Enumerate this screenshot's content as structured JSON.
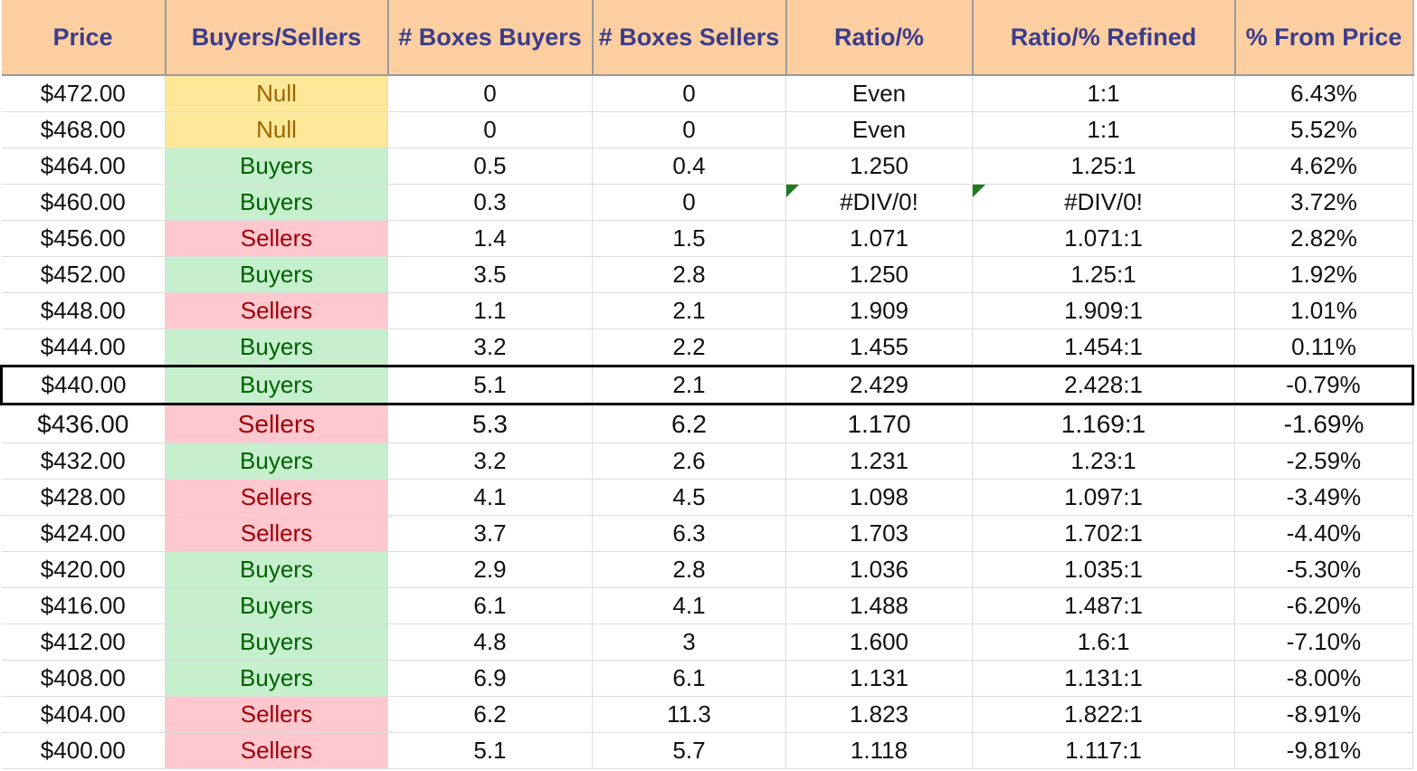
{
  "header": {
    "columns": [
      "Price",
      "Buyers/Sellers",
      "# Boxes Buyers",
      "# Boxes Sellers",
      "Ratio/%",
      "Ratio/% Refined",
      "% From Price"
    ]
  },
  "colors": {
    "header_bg": "#fdcfa0",
    "header_text": "#3c3c8c",
    "null_bg": "#fde89a",
    "buyers_bg": "#c6efce",
    "sellers_bg": "#ffc7ce"
  },
  "rows": [
    {
      "price": "$472.00",
      "side": "Null",
      "buyers": "0",
      "sellers": "0",
      "ratio": "Even",
      "refined": "1:1",
      "pct": "6.43%"
    },
    {
      "price": "$468.00",
      "side": "Null",
      "buyers": "0",
      "sellers": "0",
      "ratio": "Even",
      "refined": "1:1",
      "pct": "5.52%"
    },
    {
      "price": "$464.00",
      "side": "Buyers",
      "buyers": "0.5",
      "sellers": "0.4",
      "ratio": "1.250",
      "refined": "1.25:1",
      "pct": "4.62%"
    },
    {
      "price": "$460.00",
      "side": "Buyers",
      "buyers": "0.3",
      "sellers": "0",
      "ratio": "#DIV/0!",
      "refined": "#DIV/0!",
      "pct": "3.72%"
    },
    {
      "price": "$456.00",
      "side": "Sellers",
      "buyers": "1.4",
      "sellers": "1.5",
      "ratio": "1.071",
      "refined": "1.071:1",
      "pct": "2.82%"
    },
    {
      "price": "$452.00",
      "side": "Buyers",
      "buyers": "3.5",
      "sellers": "2.8",
      "ratio": "1.250",
      "refined": "1.25:1",
      "pct": "1.92%"
    },
    {
      "price": "$448.00",
      "side": "Sellers",
      "buyers": "1.1",
      "sellers": "2.1",
      "ratio": "1.909",
      "refined": "1.909:1",
      "pct": "1.01%"
    },
    {
      "price": "$444.00",
      "side": "Buyers",
      "buyers": "3.2",
      "sellers": "2.2",
      "ratio": "1.455",
      "refined": "1.454:1",
      "pct": "0.11%"
    },
    {
      "price": "$440.00",
      "side": "Buyers",
      "buyers": "5.1",
      "sellers": "2.1",
      "ratio": "2.429",
      "refined": "2.428:1",
      "pct": "-0.79%"
    },
    {
      "price": "$436.00",
      "side": "Sellers",
      "buyers": "5.3",
      "sellers": "6.2",
      "ratio": "1.170",
      "refined": "1.169:1",
      "pct": "-1.69%"
    },
    {
      "price": "$432.00",
      "side": "Buyers",
      "buyers": "3.2",
      "sellers": "2.6",
      "ratio": "1.231",
      "refined": "1.23:1",
      "pct": "-2.59%"
    },
    {
      "price": "$428.00",
      "side": "Sellers",
      "buyers": "4.1",
      "sellers": "4.5",
      "ratio": "1.098",
      "refined": "1.097:1",
      "pct": "-3.49%"
    },
    {
      "price": "$424.00",
      "side": "Sellers",
      "buyers": "3.7",
      "sellers": "6.3",
      "ratio": "1.703",
      "refined": "1.702:1",
      "pct": "-4.40%"
    },
    {
      "price": "$420.00",
      "side": "Buyers",
      "buyers": "2.9",
      "sellers": "2.8",
      "ratio": "1.036",
      "refined": "1.035:1",
      "pct": "-5.30%"
    },
    {
      "price": "$416.00",
      "side": "Buyers",
      "buyers": "6.1",
      "sellers": "4.1",
      "ratio": "1.488",
      "refined": "1.487:1",
      "pct": "-6.20%"
    },
    {
      "price": "$412.00",
      "side": "Buyers",
      "buyers": "4.8",
      "sellers": "3",
      "ratio": "1.600",
      "refined": "1.6:1",
      "pct": "-7.10%"
    },
    {
      "price": "$408.00",
      "side": "Buyers",
      "buyers": "6.9",
      "sellers": "6.1",
      "ratio": "1.131",
      "refined": "1.131:1",
      "pct": "-8.00%"
    },
    {
      "price": "$404.00",
      "side": "Sellers",
      "buyers": "6.2",
      "sellers": "11.3",
      "ratio": "1.823",
      "refined": "1.822:1",
      "pct": "-8.91%"
    },
    {
      "price": "$400.00",
      "side": "Sellers",
      "buyers": "5.1",
      "sellers": "5.7",
      "ratio": "1.118",
      "refined": "1.117:1",
      "pct": "-9.81%"
    }
  ]
}
